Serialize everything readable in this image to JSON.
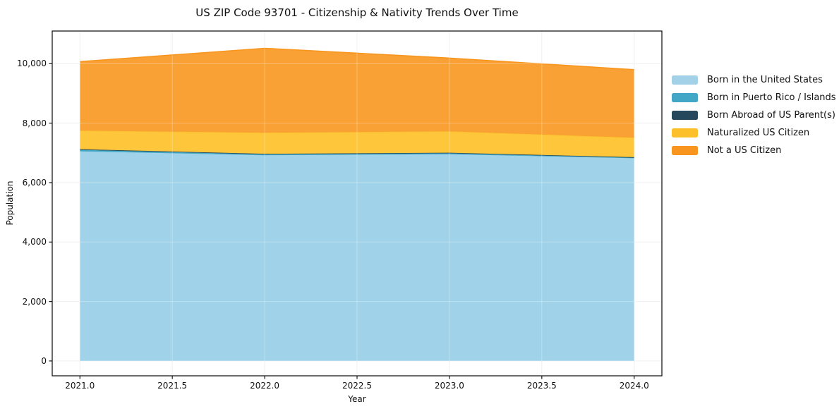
{
  "chart_data": {
    "type": "area",
    "stacked": true,
    "title": "US ZIP Code 93701 - Citizenship & Nativity Trends Over Time",
    "xlabel": "Year",
    "ylabel": "Population",
    "x": [
      2021,
      2022,
      2023,
      2024
    ],
    "series": [
      {
        "name": "Born in the United States",
        "values": [
          7050,
          6920,
          6950,
          6820
        ],
        "fill": "#A0D3E9",
        "color": "#A3D2E8"
      },
      {
        "name": "Born in Puerto Rico / Islands",
        "values": [
          50,
          35,
          40,
          25
        ],
        "fill": "#48ABC8",
        "color": "#42A7C6"
      },
      {
        "name": "Born Abroad of US Parent(s)",
        "values": [
          25,
          15,
          15,
          10
        ],
        "fill": "#2B4D61",
        "color": "#26485C"
      },
      {
        "name": "Naturalized US Citizen",
        "values": [
          625,
          710,
          720,
          655
        ],
        "fill": "#FDC63B",
        "color": "#FCC02B"
      },
      {
        "name": "Not a US Citizen",
        "values": [
          2320,
          2840,
          2465,
          2290
        ],
        "fill": "#F9A134",
        "color": "#F8951E"
      }
    ],
    "stack_totals": [
      10070,
      10520,
      10190,
      9800
    ],
    "x_ticks": {
      "values": [
        2021.0,
        2021.5,
        2022.0,
        2022.5,
        2023.0,
        2023.5,
        2024.0
      ],
      "labels": [
        "2021.0",
        "2021.5",
        "2022.0",
        "2022.5",
        "2023.0",
        "2023.5",
        "2024.0"
      ]
    },
    "y_ticks": {
      "values": [
        0,
        2000,
        4000,
        6000,
        8000,
        10000
      ],
      "labels": [
        "0",
        "2,000",
        "4,000",
        "6,000",
        "8,000",
        "10,000"
      ]
    },
    "xlim": [
      2020.85,
      2024.15
    ],
    "ylim": [
      -500,
      11100
    ],
    "grid": true,
    "legend_position": "right",
    "axis_color": "#1a1a1a",
    "grid_color": "#EBEBEB",
    "background": "#ffffff"
  }
}
